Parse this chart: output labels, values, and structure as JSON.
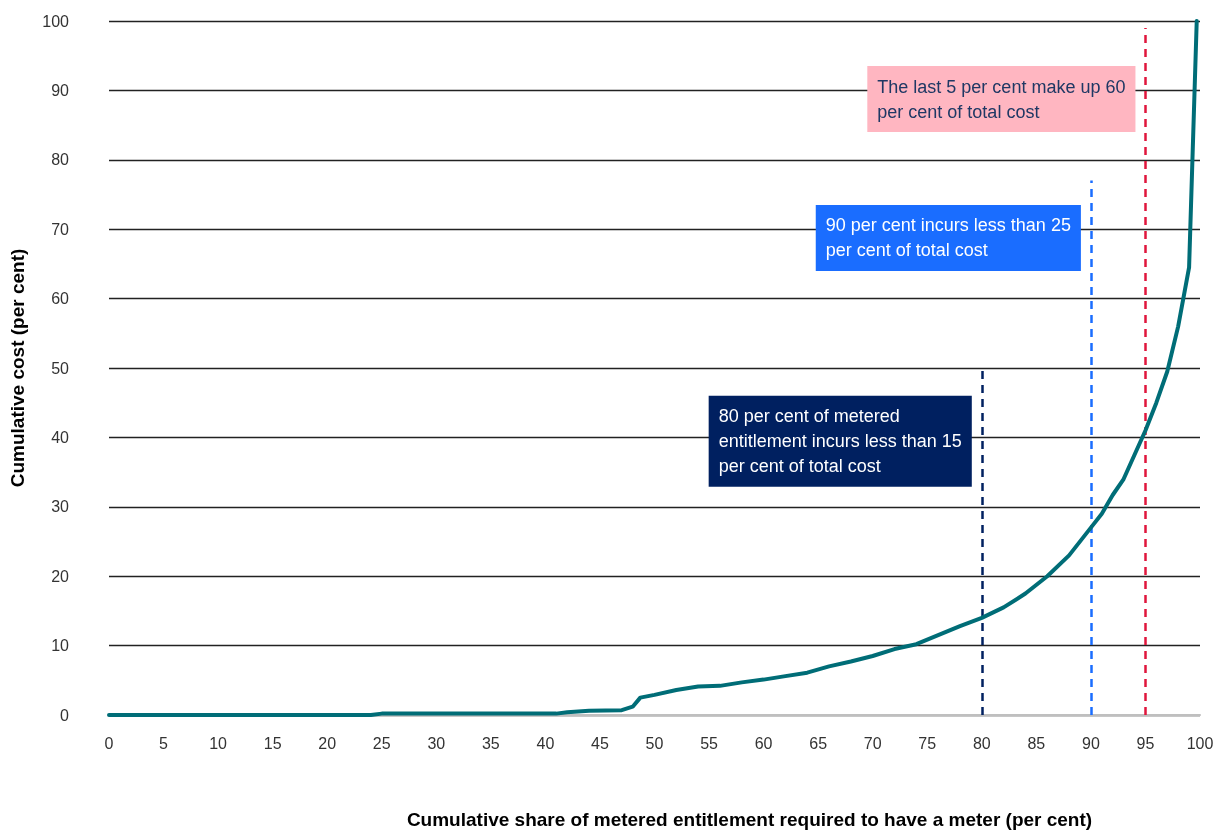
{
  "chart_data": {
    "type": "line",
    "xlabel": "Cumulative share of metered entitlement required to have a meter (per cent)",
    "ylabel": "Cumulative cost (per cent)",
    "x": [
      0,
      24,
      25,
      41,
      42,
      44,
      47,
      48,
      48.7,
      50,
      52,
      54,
      56,
      58,
      60,
      62,
      64,
      66,
      68,
      70,
      72,
      74,
      76,
      78,
      80,
      82,
      84,
      86,
      88,
      90,
      91,
      92,
      93,
      94,
      95,
      96,
      97,
      98,
      99,
      99.7
    ],
    "series": [
      {
        "color": "#006d77",
        "values": [
          0,
          0,
          0.2,
          0.2,
          0.4,
          0.6,
          0.7,
          1.2,
          2.5,
          2.9,
          3.6,
          4.1,
          4.2,
          4.7,
          5.1,
          5.6,
          6.1,
          7,
          7.7,
          8.5,
          9.5,
          10.2,
          11.5,
          12.8,
          14,
          15.5,
          17.5,
          20,
          23,
          27,
          29,
          31.7,
          34,
          37.5,
          41,
          45,
          49.5,
          56,
          64.5,
          100
        ]
      }
    ],
    "xlim": [
      0,
      100
    ],
    "xticks": [
      0,
      5,
      10,
      15,
      20,
      25,
      30,
      35,
      40,
      45,
      50,
      55,
      60,
      65,
      70,
      75,
      80,
      85,
      90,
      95,
      100
    ],
    "ylim": [
      0,
      100
    ],
    "yticks": [
      0,
      10,
      20,
      30,
      40,
      50,
      60,
      70,
      80,
      90,
      100
    ],
    "grid": "y",
    "marker": "none",
    "line_style": "solid",
    "ref_lines": [
      {
        "axis": "x",
        "value": 80,
        "label": "80 per cent of metered\nentitlement incurs less than 15\nper cent of total cost",
        "color": "#002060",
        "line_style": "dashed"
      },
      {
        "axis": "x",
        "value": 90,
        "label": "90 per cent incurs less than 25\nper cent of total cost",
        "color": "#1a6dff",
        "line_style": "dashed"
      },
      {
        "axis": "x",
        "value": 95,
        "label": "The last 5 per cent make up 60\nper cent of total cost",
        "color": "#e0163c",
        "line_style": "dashed"
      }
    ]
  }
}
